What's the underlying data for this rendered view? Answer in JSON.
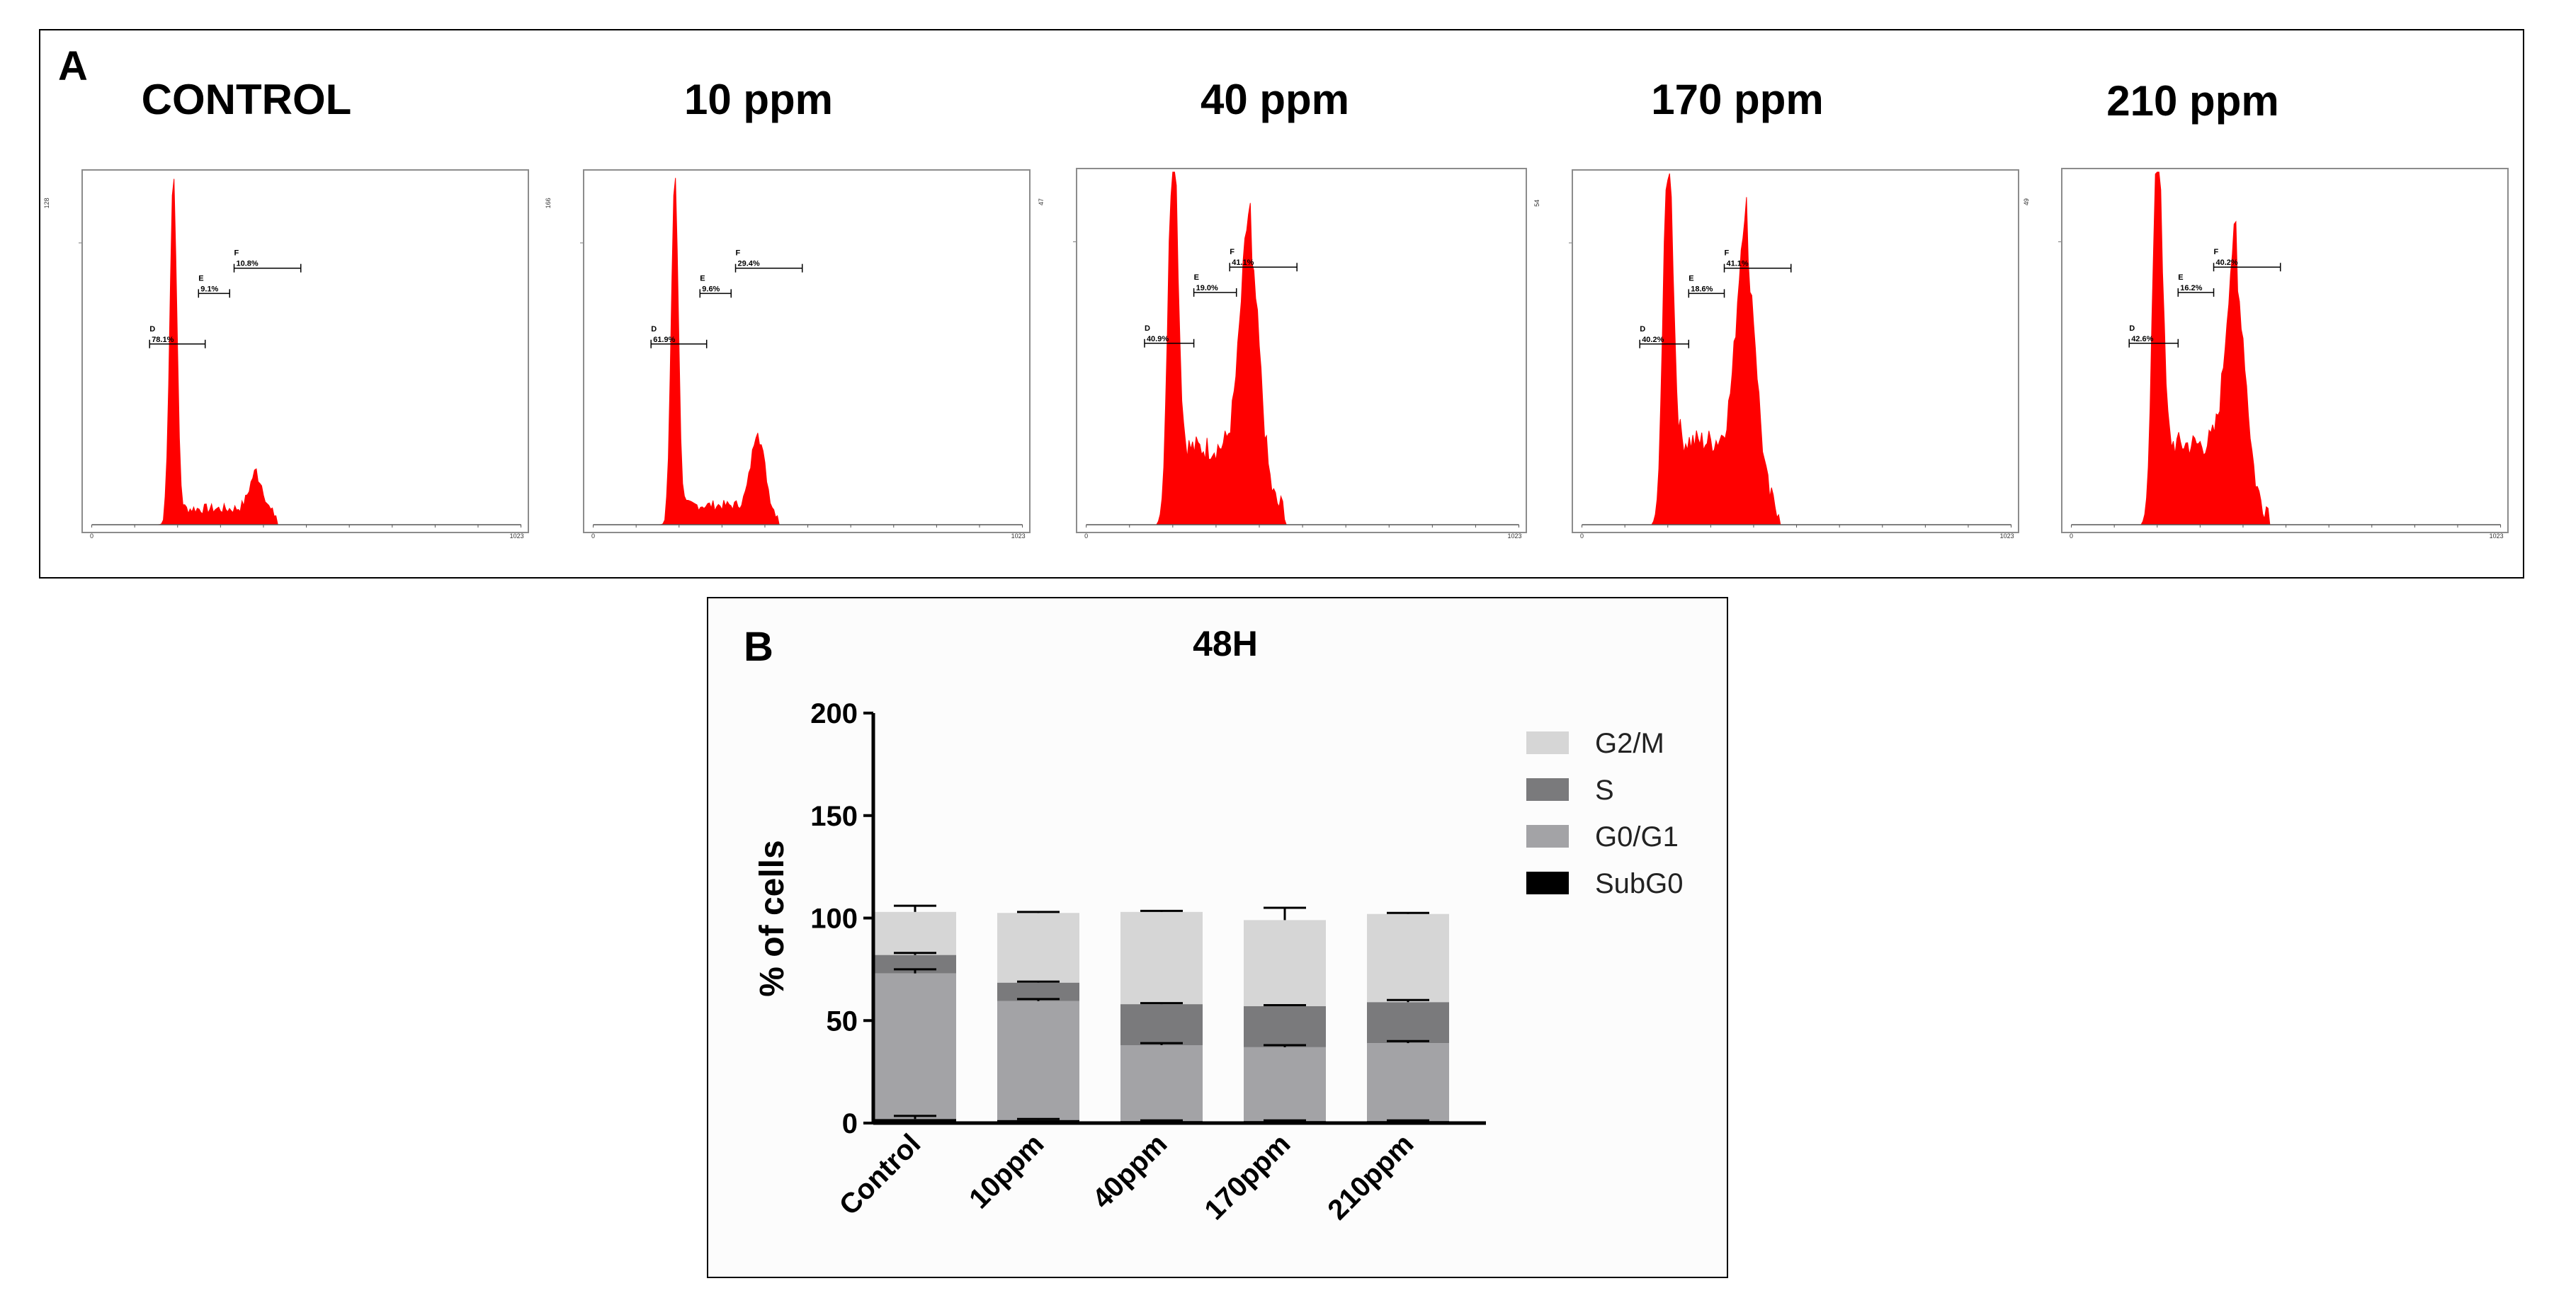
{
  "panel_a": {
    "label": "A",
    "histograms": [
      {
        "title": "CONTROL",
        "y_max_label": "128",
        "x_min_label": "0",
        "x_max_label": "1023",
        "gates": [
          {
            "name": "D",
            "value": "78.1%"
          },
          {
            "name": "E",
            "value": "9.1%"
          },
          {
            "name": "F",
            "value": "10.8%"
          }
        ]
      },
      {
        "title": "10 ppm",
        "y_max_label": "166",
        "x_min_label": "0",
        "x_max_label": "1023",
        "gates": [
          {
            "name": "D",
            "value": "61.9%"
          },
          {
            "name": "E",
            "value": "9.6%"
          },
          {
            "name": "F",
            "value": "29.4%"
          }
        ]
      },
      {
        "title": "40 ppm",
        "y_max_label": "47",
        "x_min_label": "0",
        "x_max_label": "1023",
        "gates": [
          {
            "name": "D",
            "value": "40.9%"
          },
          {
            "name": "E",
            "value": "19.0%"
          },
          {
            "name": "F",
            "value": "41.1%"
          }
        ]
      },
      {
        "title": "170 ppm",
        "y_max_label": "54",
        "x_min_label": "0",
        "x_max_label": "1023",
        "gates": [
          {
            "name": "D",
            "value": "40.2%"
          },
          {
            "name": "E",
            "value": "18.6%"
          },
          {
            "name": "F",
            "value": "41.1%"
          }
        ]
      },
      {
        "title": "210 ppm",
        "y_max_label": "49",
        "x_min_label": "0",
        "x_max_label": "1023",
        "gates": [
          {
            "name": "D",
            "value": "42.6%"
          },
          {
            "name": "E",
            "value": "16.2%"
          },
          {
            "name": "F",
            "value": "40.2%"
          }
        ]
      }
    ]
  },
  "panel_b": {
    "label": "B"
  },
  "colors": {
    "histogram_fill": "#ff0000",
    "subg0": "#000000",
    "g0g1": "#a3a3a6",
    "s": "#7a7a7c",
    "g2m": "#d6d6d6"
  },
  "chart_data": {
    "type": "bar",
    "stacked": true,
    "title": "48H",
    "xlabel": "",
    "ylabel": "% of cells",
    "ylim": [
      0,
      200
    ],
    "yticks": [
      0,
      50,
      100,
      150,
      200
    ],
    "categories": [
      "Control",
      "10ppm",
      "40ppm",
      "170ppm",
      "210ppm"
    ],
    "series": [
      {
        "name": "SubG0",
        "values": [
          2,
          1.5,
          1,
          1,
          1
        ],
        "errors": [
          1.5,
          0.5,
          0.3,
          0.3,
          0.3
        ]
      },
      {
        "name": "G0/G1",
        "values": [
          71,
          58,
          37,
          36,
          38
        ],
        "errors": [
          2,
          1,
          1,
          1,
          1
        ]
      },
      {
        "name": "S",
        "values": [
          9,
          9,
          20,
          20,
          20
        ],
        "errors": [
          1,
          0.5,
          0.5,
          0.5,
          1
        ]
      },
      {
        "name": "G2/M",
        "values": [
          21,
          34,
          45,
          42,
          43
        ],
        "errors": [
          3,
          0.5,
          0.5,
          6,
          0.5
        ]
      }
    ],
    "legend_order": [
      "G2/M",
      "S",
      "G0/G1",
      "SubG0"
    ],
    "legend_position": "right"
  }
}
